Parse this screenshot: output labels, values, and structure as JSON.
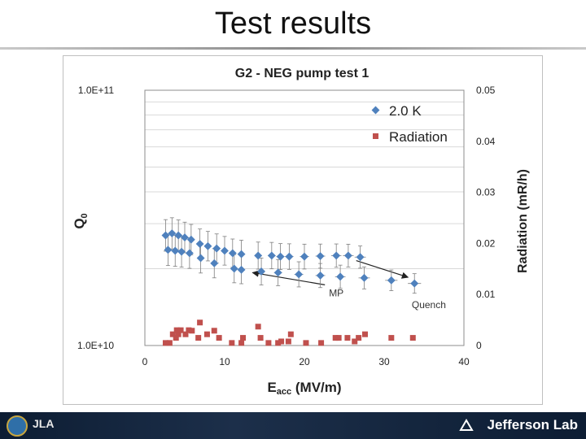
{
  "slide": {
    "title": "Test results"
  },
  "footer": {
    "brand": "Jefferson Lab",
    "left_logo_text": "JLA"
  },
  "chart_data": {
    "type": "scatter",
    "title": "G2 - NEG pump test 1",
    "xlabel_main": "E",
    "xlabel_sub": "acc",
    "xlabel_rest": " (MV/m)",
    "ylabel_main": "Q",
    "ylabel_sub": "0",
    "y2label": "Radiation (mR/h)",
    "xlim": [
      0,
      40
    ],
    "ylim": [
      10000000000.0,
      100000000000.0
    ],
    "y2lim": [
      0,
      0.05
    ],
    "y_scale": "log",
    "x_ticks": [
      0,
      10,
      20,
      30,
      40
    ],
    "x_tick_labels": [
      "0",
      "10",
      "20",
      "30",
      "40"
    ],
    "y_tick_labels": [
      "1.0E+11",
      "1.0E+10"
    ],
    "y2_ticks": [
      0,
      0.01,
      0.02,
      0.03,
      0.04,
      0.05
    ],
    "y2_tick_labels": [
      "0",
      "0.01",
      "0.02",
      "0.03",
      "0.04",
      "0.05"
    ],
    "grid": true,
    "legend_position": "top-right",
    "colors": {
      "series_2K": "#4f81bd",
      "series_radiation": "#c0504d"
    },
    "series": [
      {
        "name": "2.0 K",
        "axis": "left",
        "points": [
          [
            2.6,
            27000000000.0
          ],
          [
            3.4,
            27500000000.0
          ],
          [
            4.2,
            27000000000.0
          ],
          [
            5.0,
            26500000000.0
          ],
          [
            5.8,
            26000000000.0
          ],
          [
            6.9,
            25000000000.0
          ],
          [
            7.9,
            24500000000.0
          ],
          [
            9.0,
            24000000000.0
          ],
          [
            10.0,
            23500000000.0
          ],
          [
            11.0,
            23000000000.0
          ],
          [
            12.1,
            22800000000.0
          ],
          [
            14.2,
            22500000000.0
          ],
          [
            15.9,
            22500000000.0
          ],
          [
            17.0,
            22300000000.0
          ],
          [
            18.1,
            22300000000.0
          ],
          [
            20.0,
            22300000000.0
          ],
          [
            22.0,
            22400000000.0
          ],
          [
            24.0,
            22500000000.0
          ],
          [
            25.5,
            22500000000.0
          ],
          [
            27.0,
            22200000000.0
          ],
          [
            2.9,
            23700000000.0
          ],
          [
            3.8,
            23500000000.0
          ],
          [
            4.6,
            23300000000.0
          ],
          [
            5.6,
            23000000000.0
          ],
          [
            7.0,
            22000000000.0
          ],
          [
            8.7,
            21000000000.0
          ],
          [
            11.2,
            20000000000.0
          ],
          [
            12.1,
            19800000000.0
          ],
          [
            14.6,
            19500000000.0
          ],
          [
            16.7,
            19300000000.0
          ],
          [
            19.3,
            19000000000.0
          ],
          [
            22.0,
            18800000000.0
          ],
          [
            24.5,
            18600000000.0
          ],
          [
            27.5,
            18400000000.0
          ],
          [
            30.9,
            18000000000.0
          ],
          [
            33.8,
            17500000000.0
          ]
        ]
      },
      {
        "name": "Radiation",
        "axis": "right",
        "points": [
          [
            2.6,
            0.0005
          ],
          [
            3.1,
            0.0005
          ],
          [
            3.9,
            0.0015
          ],
          [
            3.5,
            0.0022
          ],
          [
            4.2,
            0.0022
          ],
          [
            4.0,
            0.003
          ],
          [
            4.5,
            0.003
          ],
          [
            5.1,
            0.0022
          ],
          [
            5.5,
            0.003
          ],
          [
            5.9,
            0.0029
          ],
          [
            6.7,
            0.0015
          ],
          [
            6.9,
            0.0045
          ],
          [
            7.8,
            0.0022
          ],
          [
            8.7,
            0.0029
          ],
          [
            9.3,
            0.0015
          ],
          [
            10.9,
            0.0005
          ],
          [
            12.1,
            0.0005
          ],
          [
            12.3,
            0.0015
          ],
          [
            14.2,
            0.0037
          ],
          [
            14.5,
            0.0015
          ],
          [
            15.5,
            0.0005
          ],
          [
            16.7,
            0.0005
          ],
          [
            17.1,
            0.0008
          ],
          [
            18.0,
            0.0008
          ],
          [
            18.3,
            0.0022
          ],
          [
            20.2,
            0.0005
          ],
          [
            22.1,
            0.0005
          ],
          [
            23.9,
            0.0015
          ],
          [
            24.3,
            0.0015
          ],
          [
            25.4,
            0.0015
          ],
          [
            26.3,
            0.0008
          ],
          [
            26.8,
            0.0015
          ],
          [
            27.6,
            0.0022
          ],
          [
            30.9,
            0.0015
          ],
          [
            33.6,
            0.0015
          ]
        ]
      }
    ],
    "annotations": [
      {
        "text": "MP",
        "x": 24.0,
        "y": 15600000000.0
      },
      {
        "text": "Quench",
        "x": 35.6,
        "y": 14000000000.0
      }
    ]
  }
}
